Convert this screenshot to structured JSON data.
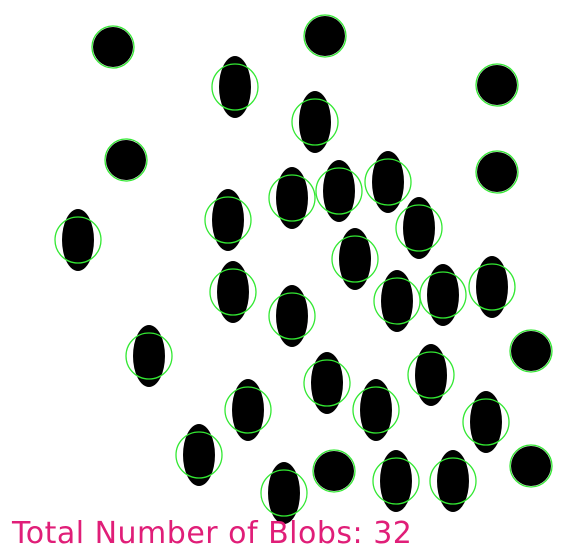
{
  "caption": {
    "label": "Total Number of Blobs:",
    "count": "32"
  },
  "colors": {
    "background": "#ffffff",
    "blob": "#000000",
    "ring": "#33e833",
    "caption": "#e01e78"
  },
  "blob_count": 32
}
